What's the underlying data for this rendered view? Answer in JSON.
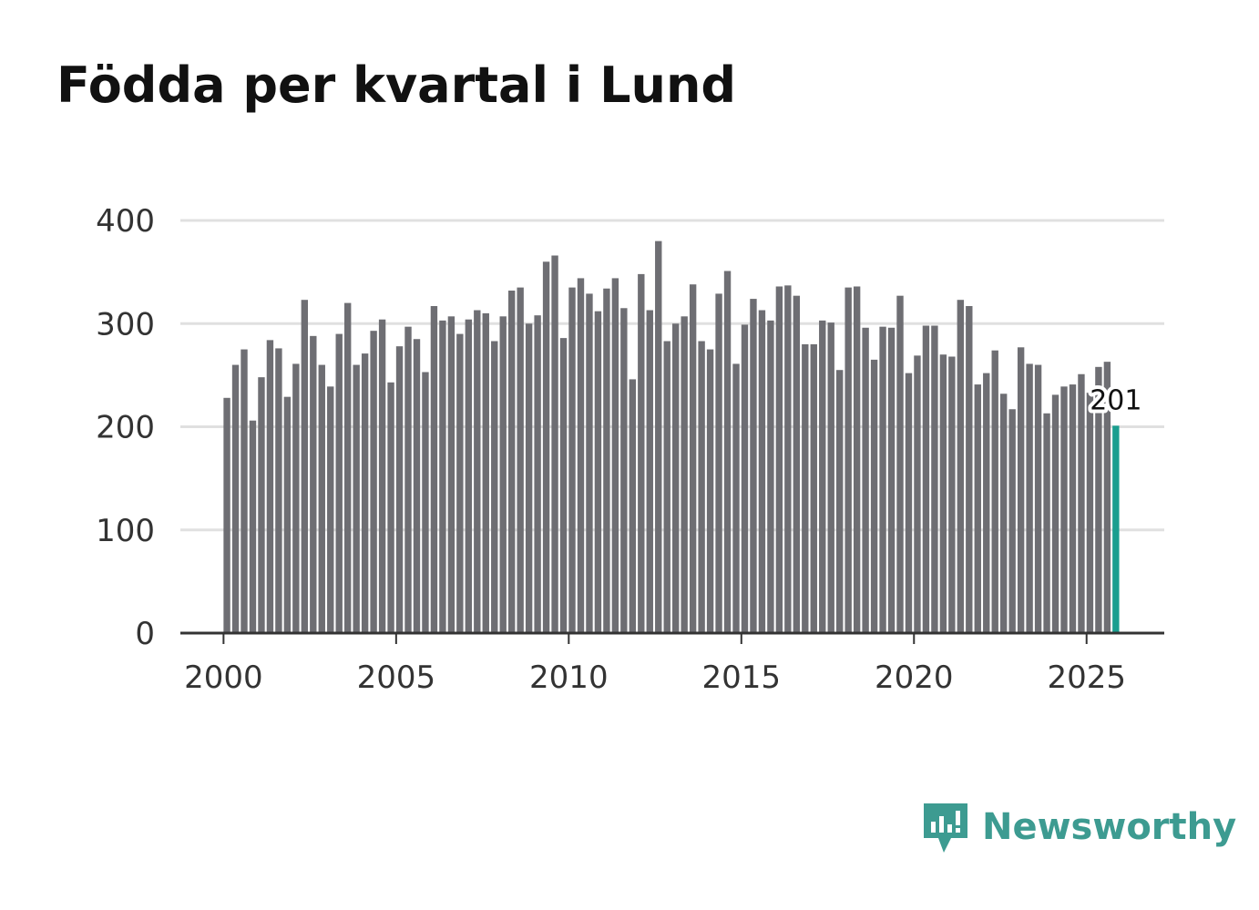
{
  "title": "Födda per kvartal i Lund",
  "brand": {
    "name": "Newsworthy",
    "color": "#3d9b91"
  },
  "colors": {
    "bar": "#6e6e73",
    "highlight": "#1a9e8f",
    "grid": "#e0e0e0",
    "axis": "#333333"
  },
  "chart_data": {
    "type": "bar",
    "title": "Födda per kvartal i Lund",
    "xlabel": "",
    "ylabel": "",
    "ylim": [
      0,
      400
    ],
    "yticks": [
      0,
      100,
      200,
      300,
      400
    ],
    "xlim": [
      1998.75,
      2027.25
    ],
    "xticks": [
      2000,
      2005,
      2010,
      2015,
      2020,
      2025
    ],
    "x_start": 2000.0,
    "x_step": 0.25,
    "grid": true,
    "highlight_label": "201",
    "values": [
      228,
      260,
      275,
      206,
      248,
      284,
      276,
      229,
      261,
      323,
      288,
      260,
      239,
      290,
      320,
      260,
      271,
      293,
      304,
      243,
      278,
      297,
      285,
      253,
      317,
      303,
      307,
      290,
      304,
      313,
      310,
      283,
      307,
      332,
      335,
      300,
      308,
      360,
      366,
      286,
      335,
      344,
      329,
      312,
      334,
      344,
      315,
      246,
      348,
      313,
      380,
      283,
      300,
      307,
      338,
      283,
      275,
      329,
      351,
      261,
      299,
      324,
      313,
      303,
      336,
      337,
      327,
      280,
      280,
      303,
      301,
      255,
      335,
      336,
      296,
      265,
      297,
      296,
      327,
      252,
      269,
      298,
      298,
      270,
      268,
      323,
      317,
      241,
      252,
      274,
      232,
      217,
      277,
      261,
      260,
      213,
      231,
      239,
      241,
      251,
      233,
      258,
      263,
      201
    ]
  }
}
